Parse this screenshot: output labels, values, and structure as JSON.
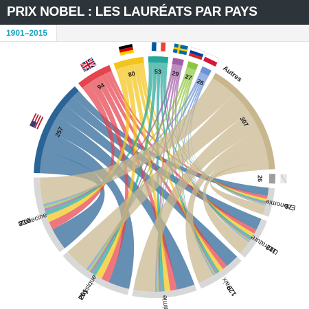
{
  "header": {
    "title": "PRIX NOBEL : LES LAURÉATS PAR PAYS"
  },
  "tabs": [
    {
      "label": "1901–2015"
    }
  ],
  "countries": [
    {
      "id": "usa",
      "label": "257",
      "value": 257,
      "color": "#2a6496",
      "flag": "flag-usa-icon"
    },
    {
      "id": "uk",
      "label": "94",
      "value": 94,
      "color": "#e5434e",
      "flag": "flag-uk-icon"
    },
    {
      "id": "germany",
      "label": "80",
      "value": 80,
      "color": "#f2c51b",
      "flag": "flag-germany-icon"
    },
    {
      "id": "france",
      "label": "53",
      "value": 53,
      "color": "#26a69a",
      "flag": "flag-france-icon"
    },
    {
      "id": "sweden",
      "label": "29",
      "value": 29,
      "color": "#a25ca6",
      "flag": "flag-sweden-icon"
    },
    {
      "id": "russia",
      "label": "27",
      "value": 27,
      "color": "#8cc63f",
      "flag": "flag-russia-icon"
    },
    {
      "id": "poland",
      "label": "26",
      "value": 26,
      "color": "#6b93d6",
      "flag": "flag-poland-icon"
    },
    {
      "id": "autres",
      "name": "Autres",
      "label": "307",
      "value": 307,
      "color": "#c8b68e"
    }
  ],
  "categories": [
    {
      "id": "economie",
      "name": "Économie",
      "label": "76",
      "value": 76
    },
    {
      "id": "litterature",
      "name": "Littérature",
      "label": "112",
      "value": 112
    },
    {
      "id": "paix",
      "name": "Paix",
      "label": "129",
      "value": 129
    },
    {
      "id": "chimie",
      "name": "Chimie",
      "label": "171",
      "value": 171
    },
    {
      "id": "physique",
      "name": "Physique",
      "label": "201",
      "value": 201
    },
    {
      "id": "medecine",
      "name": "Médecine",
      "label": "210",
      "value": 210
    }
  ],
  "small_segment": {
    "label": "26",
    "value": 26,
    "color": "#9e9e9e"
  },
  "colors": {
    "header_bg": "#2d343a",
    "tab_accent": "#1aa0bf",
    "category_arc": "#d8d8d8",
    "small_segment": "#9e9e9e"
  }
}
